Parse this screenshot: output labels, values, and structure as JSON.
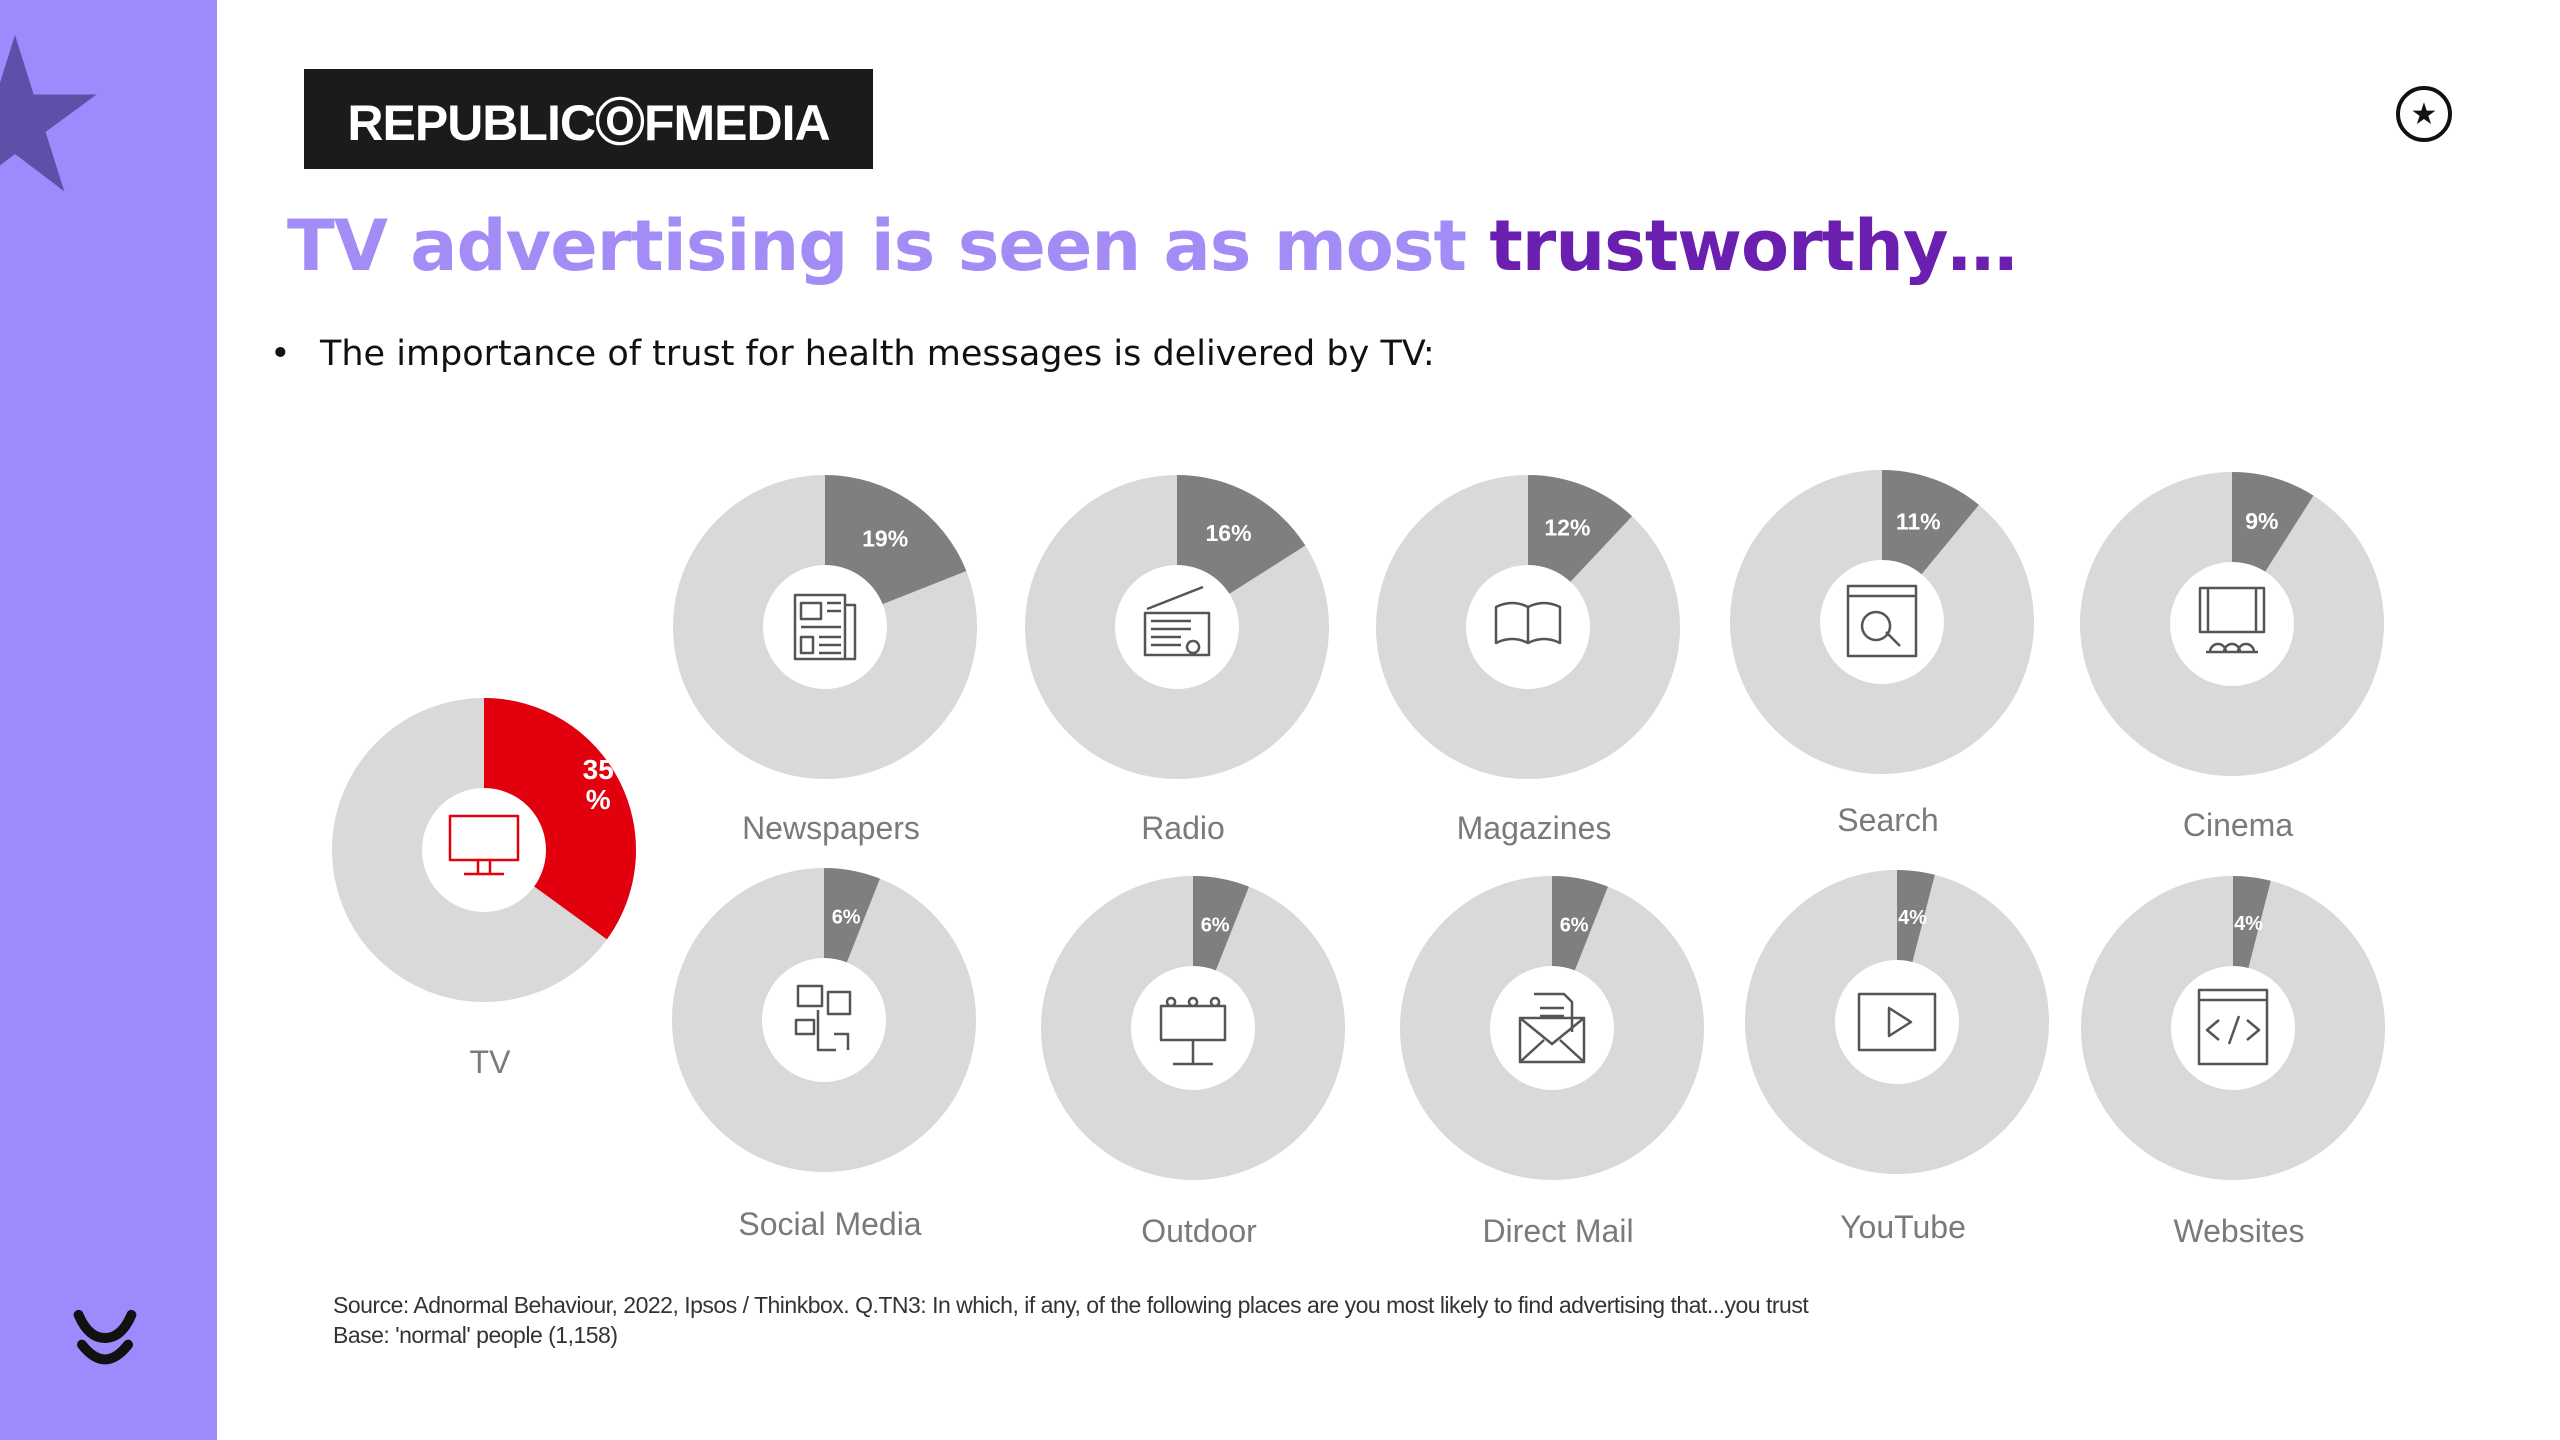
{
  "brand": {
    "logo_text": "REPUBLICⓄFMEDIA"
  },
  "header": {
    "star_icon": "star-circle-icon"
  },
  "title": {
    "part_light": "TV advertising is seen as most ",
    "part_dark": "trustworthy…"
  },
  "bullet": {
    "marker": "•",
    "text": "The importance of trust for health messages is delivered by TV:"
  },
  "colors": {
    "sidebar": "#9d8bfd",
    "title_light": "#a38cf6",
    "title_dark": "#6a1fb1",
    "tv_segment": "#e2000f",
    "segment": "#7f7f7f",
    "ring": "#d9d9d9"
  },
  "chart_data": {
    "type": "pie",
    "subtype": "donut",
    "title": "TV advertising is seen as most trustworthy…",
    "unit": "%",
    "series": [
      {
        "name": "TV",
        "value": 35,
        "label": "35 %",
        "icon": "tv-icon",
        "highlight": true
      },
      {
        "name": "Newspapers",
        "value": 19,
        "label": "19%",
        "icon": "newspaper-icon"
      },
      {
        "name": "Radio",
        "value": 16,
        "label": "16%",
        "icon": "radio-icon"
      },
      {
        "name": "Magazines",
        "value": 12,
        "label": "12%",
        "icon": "book-icon"
      },
      {
        "name": "Search",
        "value": 11,
        "label": "11%",
        "icon": "search-icon"
      },
      {
        "name": "Cinema",
        "value": 9,
        "label": "9%",
        "icon": "cinema-icon"
      },
      {
        "name": "Social Media",
        "value": 6,
        "label": "6%",
        "icon": "social-media-icon"
      },
      {
        "name": "Outdoor",
        "value": 6,
        "label": "6%",
        "icon": "billboard-icon"
      },
      {
        "name": "Direct Mail",
        "value": 6,
        "label": "6%",
        "icon": "mail-icon"
      },
      {
        "name": "YouTube",
        "value": 4,
        "label": "4%",
        "icon": "play-icon"
      },
      {
        "name": "Websites",
        "value": 4,
        "label": "4%",
        "icon": "code-window-icon"
      }
    ]
  },
  "source": {
    "line1": "Source: Adnormal Behaviour, 2022, Ipsos / Thinkbox. Q.TN3: In which, if any, of the following places are you most likely to find advertising that...you trust",
    "line2": "Base: 'normal' people (1,158)"
  }
}
